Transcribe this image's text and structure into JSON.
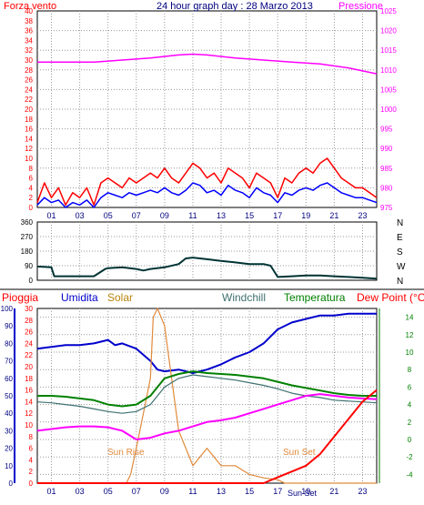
{
  "header": {
    "left_label": "Forza vento",
    "title": "24 hour graph day : 28 Marzo 2013",
    "right_label": "Pressione"
  },
  "colors": {
    "wind_gust": "#ff0000",
    "wind_avg": "#0000ff",
    "pressure": "#ff00ff",
    "direction": "#003333",
    "rain": "#ff0000",
    "humidity": "#0000cc",
    "solar": "#e08a3a",
    "windchill": "#3f7070",
    "temperature": "#008000",
    "dewpoint": "#ff00ff",
    "left_axis_text": "#ff0000",
    "axis_text_blue": "#000080"
  },
  "x_axis": {
    "range": [
      0,
      24
    ],
    "ticks": [
      "01",
      "03",
      "05",
      "07",
      "09",
      "11",
      "13",
      "15",
      "17",
      "19",
      "21",
      "23"
    ],
    "tick_hours": [
      1,
      3,
      5,
      7,
      9,
      11,
      13,
      15,
      17,
      19,
      21,
      23
    ]
  },
  "chart_data": [
    {
      "type": "line",
      "panel": "wind-pressure",
      "y_left": {
        "label": "Forza vento",
        "ticks": [
          "0",
          "2",
          "4",
          "6",
          "8",
          "10",
          "12",
          "14",
          "16",
          "18",
          "20",
          "22",
          "24",
          "26",
          "28",
          "30",
          "32",
          "34",
          "36",
          "38",
          "40"
        ],
        "range": [
          0,
          40
        ]
      },
      "y_right": {
        "label": "Pressione",
        "ticks": [
          "975",
          "980",
          "985",
          "990",
          "995",
          "1000",
          "1005",
          "1010",
          "1015",
          "1020",
          "1025"
        ],
        "range": [
          975,
          1025
        ]
      },
      "series": [
        {
          "name": "Forza vento",
          "axis": "left",
          "role": "gust",
          "x": [
            0,
            0.5,
            1,
            1.5,
            2,
            2.5,
            3,
            3.5,
            4,
            4.5,
            5,
            5.5,
            6,
            6.5,
            7,
            7.5,
            8,
            8.5,
            9,
            9.5,
            10,
            10.5,
            11,
            11.5,
            12,
            12.5,
            13,
            13.5,
            14,
            14.5,
            15,
            15.5,
            16,
            16.5,
            17,
            17.5,
            18,
            18.5,
            19,
            19.5,
            20,
            20.5,
            21,
            21.5,
            22,
            22.5,
            23,
            23.5,
            24
          ],
          "y": [
            1,
            5,
            2,
            4,
            0.5,
            3,
            2,
            4,
            0.5,
            5,
            6,
            5,
            4,
            6,
            5,
            6,
            7,
            6,
            8,
            6,
            5,
            7,
            9,
            8,
            6,
            7,
            5,
            8,
            7,
            6,
            4,
            7,
            6,
            5,
            2,
            6,
            5,
            7,
            8,
            7,
            9,
            10,
            8,
            6,
            5,
            4,
            4,
            3,
            2
          ]
        },
        {
          "name": "Forza vento",
          "axis": "left",
          "role": "average",
          "x": [
            0,
            0.5,
            1,
            1.5,
            2,
            2.5,
            3,
            3.5,
            4,
            4.5,
            5,
            5.5,
            6,
            6.5,
            7,
            7.5,
            8,
            8.5,
            9,
            9.5,
            10,
            10.5,
            11,
            11.5,
            12,
            12.5,
            13,
            13.5,
            14,
            14.5,
            15,
            15.5,
            16,
            16.5,
            17,
            17.5,
            18,
            18.5,
            19,
            19.5,
            20,
            20.5,
            21,
            21.5,
            22,
            22.5,
            23,
            23.5,
            24
          ],
          "y": [
            0.5,
            2,
            1,
            1.5,
            0,
            1,
            0.5,
            1.5,
            0,
            2,
            3,
            2.5,
            2,
            3,
            2.5,
            3,
            3.5,
            3,
            4,
            3,
            2.5,
            3.5,
            5,
            4.5,
            3,
            3.5,
            2.5,
            4.5,
            3.5,
            3,
            2,
            4,
            3,
            2.5,
            1,
            3,
            2.5,
            3.5,
            4,
            3.5,
            4.5,
            5,
            4,
            3,
            2.5,
            2,
            2,
            1.5,
            1
          ]
        },
        {
          "name": "Pressione",
          "axis": "right",
          "x": [
            0,
            2,
            4,
            6,
            8,
            10,
            11,
            12,
            14,
            16,
            18,
            20,
            22,
            24
          ],
          "y": [
            1012,
            1012,
            1012,
            1012.5,
            1013,
            1013.8,
            1014,
            1013.8,
            1013,
            1012.5,
            1012,
            1011.5,
            1010.5,
            1009
          ]
        }
      ]
    },
    {
      "type": "line",
      "panel": "wind-direction",
      "y_left": {
        "ticks": [
          "0",
          "90",
          "180",
          "270",
          "360"
        ],
        "range": [
          0,
          360
        ]
      },
      "y_right": {
        "ticks": [
          "N",
          "W",
          "S",
          "E",
          "N"
        ]
      },
      "series": [
        {
          "name": "",
          "axis": "left",
          "x": [
            0,
            1,
            1.2,
            2,
            3,
            4,
            4.8,
            5,
            6,
            7,
            7.5,
            8,
            9,
            10,
            10.5,
            11,
            12,
            13,
            14,
            15,
            16,
            16.5,
            17,
            18,
            19,
            20,
            21,
            22,
            23,
            24
          ],
          "y": [
            85,
            80,
            25,
            25,
            25,
            25,
            70,
            75,
            80,
            70,
            60,
            70,
            80,
            100,
            135,
            140,
            130,
            120,
            110,
            100,
            100,
            90,
            20,
            25,
            30,
            30,
            25,
            20,
            15,
            10
          ]
        }
      ]
    },
    {
      "type": "line",
      "panel": "weather",
      "legend": [
        "Pioggia",
        "Umidita",
        "Solar",
        "Windchill",
        "Temperatura",
        "Dew Point (°C)"
      ],
      "y_axes": {
        "humidity": {
          "ticks": [
            "0",
            "10",
            "20",
            "30",
            "40",
            "50",
            "60",
            "70",
            "80",
            "90",
            "100"
          ],
          "range": [
            0,
            100
          ]
        },
        "rain": {
          "ticks": [
            "0",
            "2",
            "4",
            "6",
            "8",
            "10",
            "12",
            "14",
            "16",
            "18",
            "20",
            "22",
            "24",
            "26",
            "28",
            "30"
          ],
          "range": [
            0,
            30
          ]
        },
        "temperature": {
          "ticks": [
            "-4",
            "-2",
            "0",
            "2",
            "4",
            "6",
            "8",
            "10",
            "12",
            "14"
          ],
          "range": [
            -5,
            15
          ]
        }
      },
      "annotations": [
        "Sun Rise",
        "Sun Set",
        "Sun Set"
      ],
      "series": [
        {
          "name": "Pioggia",
          "axis": "rain",
          "x": [
            0,
            16,
            17,
            18,
            19,
            20,
            21,
            22,
            23,
            24
          ],
          "y": [
            0,
            0,
            1,
            2,
            3,
            5,
            8,
            11,
            14,
            16
          ]
        },
        {
          "name": "Umidita",
          "axis": "humidity",
          "x": [
            0,
            1,
            2,
            3,
            4,
            5,
            5.5,
            6,
            7,
            8,
            8.5,
            9,
            10,
            11,
            12,
            13,
            14,
            15,
            16,
            17,
            18,
            19,
            20,
            21,
            22,
            23,
            24
          ],
          "y": [
            77,
            78,
            79,
            79,
            80,
            82,
            79,
            80,
            77,
            70,
            65,
            64,
            65,
            63,
            65,
            68,
            72,
            75,
            80,
            88,
            92,
            94,
            96,
            96,
            97,
            97,
            97
          ]
        },
        {
          "name": "Solar",
          "axis": "humidity",
          "x": [
            0,
            6.3,
            6.6,
            7,
            7.5,
            8,
            8.2,
            8.5,
            9,
            9.5,
            10,
            11,
            12,
            13,
            14,
            15,
            16,
            17,
            17.5,
            18,
            24
          ],
          "y": [
            0,
            0,
            5,
            20,
            40,
            60,
            95,
            100,
            90,
            60,
            30,
            10,
            20,
            10,
            10,
            5,
            3,
            2,
            0,
            0,
            0
          ]
        },
        {
          "name": "Windchill",
          "axis": "temperature",
          "x": [
            0,
            1,
            2,
            3,
            4,
            5,
            6,
            7,
            8,
            8.5,
            9,
            10,
            11,
            12,
            13,
            14,
            15,
            16,
            17,
            18,
            19,
            20,
            21,
            22,
            23,
            24
          ],
          "y": [
            4.3,
            4.2,
            4.0,
            3.8,
            3.5,
            3.2,
            3.0,
            3.2,
            4.0,
            5.0,
            6.0,
            7.0,
            7.4,
            7.2,
            7.0,
            6.8,
            6.5,
            6.2,
            5.8,
            5.3,
            5.0,
            4.8,
            4.5,
            4.4,
            4.3,
            4.2
          ]
        },
        {
          "name": "Temperatura",
          "axis": "temperature",
          "x": [
            0,
            1,
            2,
            3,
            4,
            5,
            6,
            7,
            8,
            8.5,
            9,
            10,
            11,
            12,
            13,
            14,
            15,
            16,
            17,
            18,
            19,
            20,
            21,
            22,
            23,
            24
          ],
          "y": [
            5.0,
            5.0,
            4.9,
            4.7,
            4.5,
            4.0,
            3.8,
            4.0,
            5.0,
            6.0,
            7.0,
            7.5,
            7.8,
            7.6,
            7.5,
            7.4,
            7.2,
            7.0,
            6.6,
            6.2,
            5.9,
            5.6,
            5.3,
            5.1,
            5.0,
            5.0
          ]
        },
        {
          "name": "Dew Point (°C)",
          "axis": "temperature",
          "x": [
            0,
            1,
            2,
            3,
            4,
            5,
            6,
            7,
            8,
            9,
            10,
            11,
            12,
            13,
            14,
            15,
            16,
            17,
            18,
            19,
            20,
            21,
            22,
            23,
            24
          ],
          "y": [
            1.0,
            1.2,
            1.4,
            1.5,
            1.5,
            1.4,
            1.0,
            0.0,
            0.2,
            0.7,
            1.0,
            1.5,
            2.0,
            2.2,
            2.5,
            3.0,
            3.5,
            4.0,
            4.5,
            5.0,
            5.2,
            5.0,
            4.8,
            4.7,
            4.6
          ]
        }
      ]
    }
  ]
}
